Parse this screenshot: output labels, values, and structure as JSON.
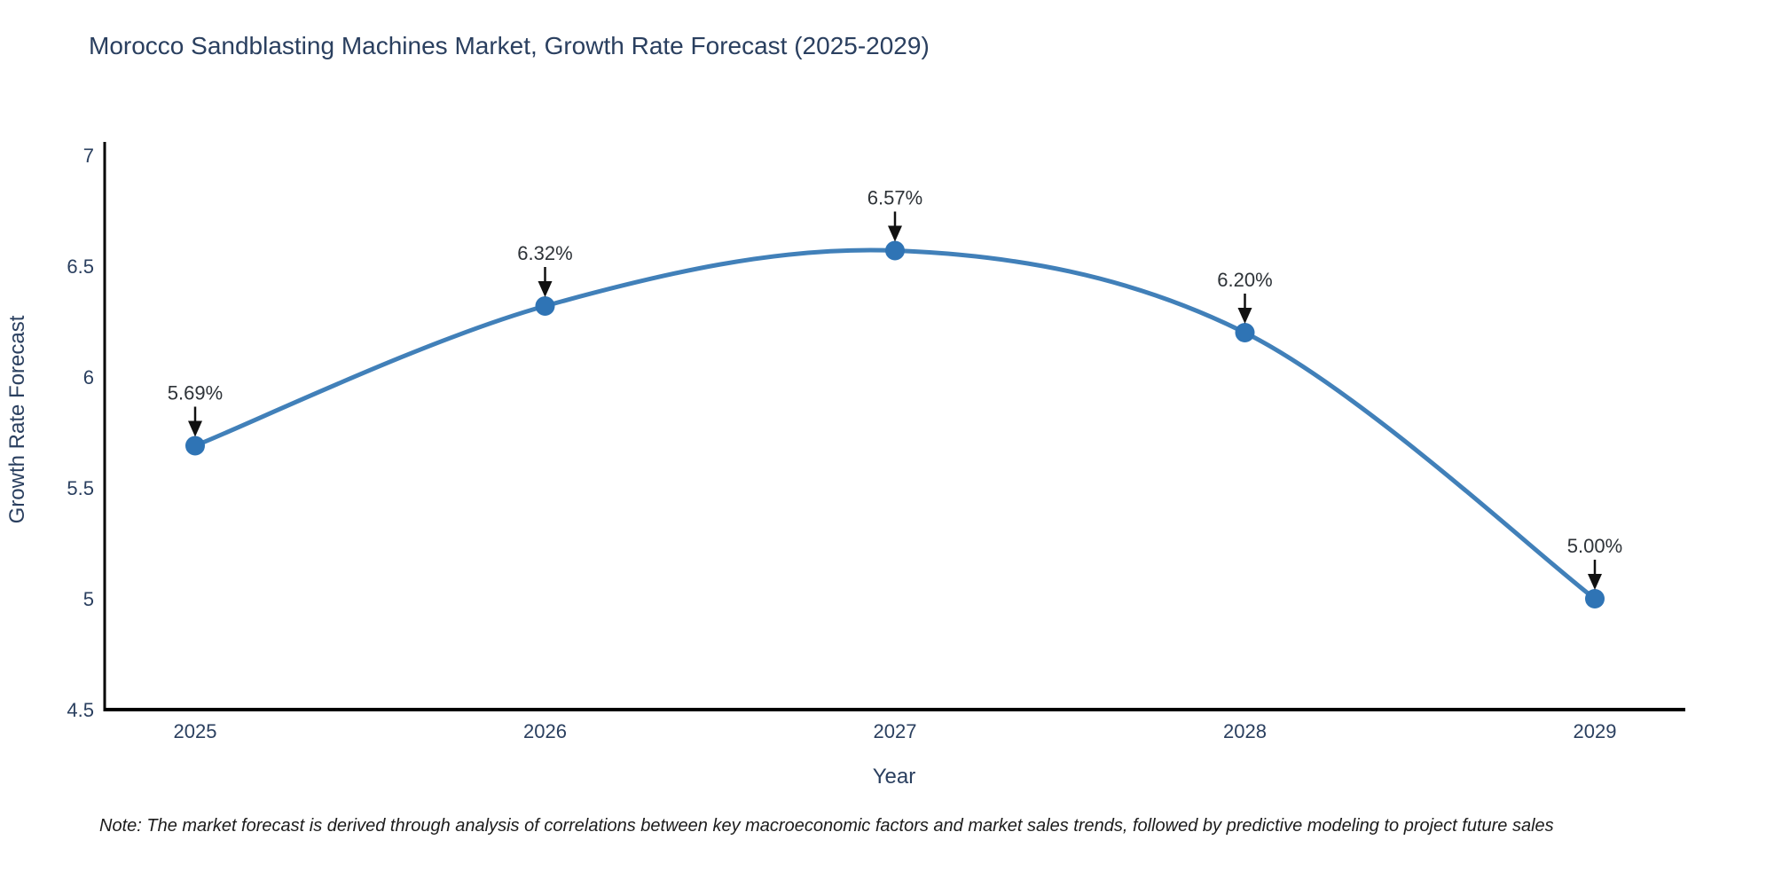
{
  "page": {
    "note": "Note: The market forecast is derived through analysis of correlations between key macroeconomic factors and market sales trends, followed by predictive modeling to project future sales"
  },
  "chart_data": {
    "type": "line",
    "title": "Morocco Sandblasting Machines Market, Growth Rate Forecast (2025-2029)",
    "x": [
      2025,
      2026,
      2027,
      2028,
      2029
    ],
    "values": [
      5.69,
      6.32,
      6.57,
      6.2,
      5.0
    ],
    "point_labels": [
      "5.69%",
      "6.32%",
      "6.57%",
      "6.20%",
      "5.00%"
    ],
    "xlabel": "Year",
    "ylabel": "Growth Rate Forecast",
    "ylim": [
      4.5,
      7.06
    ],
    "yticks": [
      4.5,
      5,
      5.5,
      6,
      6.5,
      7
    ],
    "ytick_labels": [
      "4.5",
      "5",
      "5.5",
      "6",
      "6.5",
      "7"
    ],
    "xtick_labels": [
      "2025",
      "2026",
      "2027",
      "2028",
      "2029"
    ],
    "grid": false,
    "legend": false,
    "smooth": true,
    "colors": {
      "line": "#4180b9",
      "marker": "#2f74b5",
      "axis": "#000000",
      "text": "#2a3f5f",
      "annotation_text": "#2e3338",
      "arrow": "#111111"
    }
  }
}
